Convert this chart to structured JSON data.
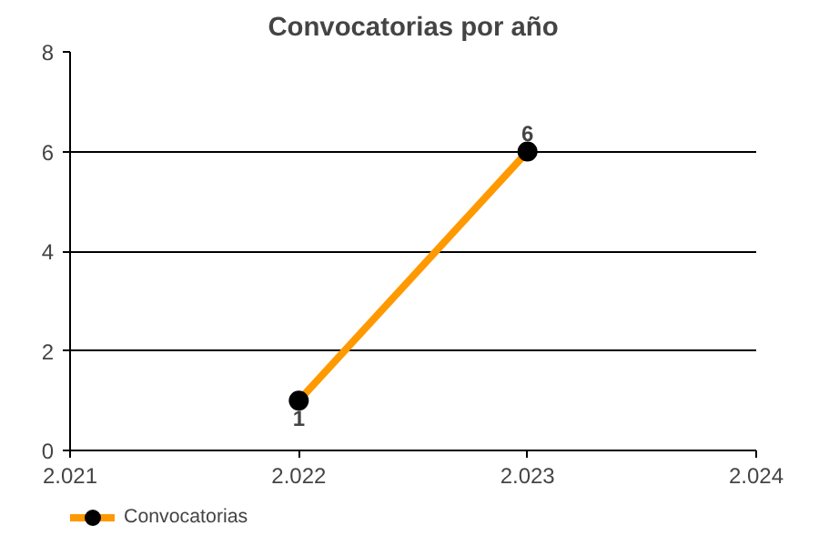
{
  "chart_data": {
    "type": "line",
    "title": "Convocatorias por año",
    "x": [
      2022,
      2023
    ],
    "series": [
      {
        "name": "Convocatorias",
        "color": "#ff9900",
        "values": [
          1,
          6
        ]
      }
    ],
    "xlim": [
      2021,
      2024
    ],
    "xticks": [
      {
        "value": 2021,
        "label": "2.021"
      },
      {
        "value": 2022,
        "label": "2.022"
      },
      {
        "value": 2023,
        "label": "2.023"
      },
      {
        "value": 2024,
        "label": "2.024"
      }
    ],
    "ylim": [
      0,
      8
    ],
    "yticks": [
      0,
      2,
      4,
      6,
      8
    ],
    "grid": "y",
    "legend": "bottom",
    "marker": "circle",
    "line_style": "solid",
    "data_labels": true
  }
}
